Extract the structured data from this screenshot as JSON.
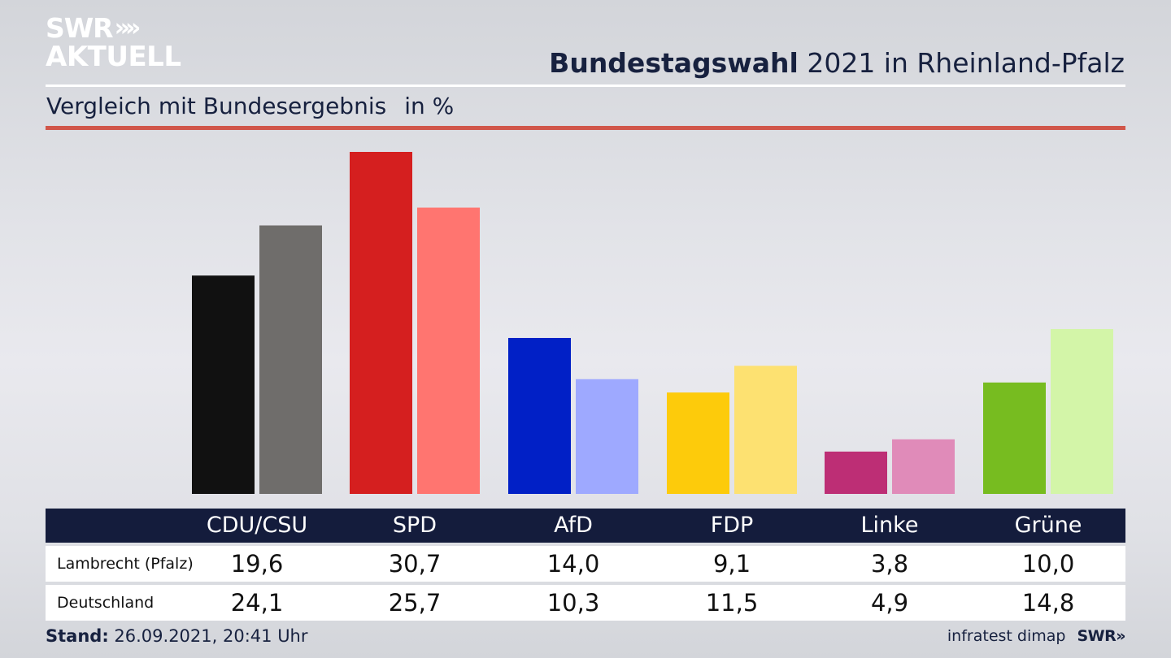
{
  "brand": {
    "logo_top": "SWR",
    "logo_chevrons": "»",
    "logo_bottom": "AKTUELL"
  },
  "header": {
    "title_bold": "Bundestagswahl",
    "title_rest": "2021 in Rheinland-Pfalz",
    "subtitle": "Vergleich mit Bundesergebnis",
    "unit": "in %"
  },
  "chart_data": {
    "type": "bar",
    "categories": [
      "CDU/CSU",
      "SPD",
      "AfD",
      "FDP",
      "Linke",
      "Grüne"
    ],
    "series": [
      {
        "name": "Lambrecht (Pfalz)",
        "values": [
          19.6,
          30.7,
          14.0,
          9.1,
          3.8,
          10.0
        ]
      },
      {
        "name": "Deutschland",
        "values": [
          24.1,
          25.7,
          10.3,
          11.5,
          4.9,
          14.8
        ]
      }
    ],
    "series_labels": [
      [
        "19,6",
        "30,7",
        "14,0",
        "9,1",
        "3,8",
        "10,0"
      ],
      [
        "24,1",
        "25,7",
        "10,3",
        "11,5",
        "4,9",
        "14,8"
      ]
    ],
    "colors": {
      "primary": [
        "#111111",
        "#d51f1f",
        "#0120c6",
        "#fdcb0b",
        "#bd2e75",
        "#77bc20"
      ],
      "secondary": [
        "#6f6d6b",
        "#ff7570",
        "#9ea9ff",
        "#fde171",
        "#e08bb9",
        "#d3f5a8"
      ]
    },
    "ylim": [
      0,
      31.5
    ],
    "grid": false,
    "legend": "table-below"
  },
  "footer": {
    "stand_label": "Stand:",
    "stand_value": "26.09.2021, 20:41 Uhr",
    "source": "infratest dimap",
    "brand": "SWR»"
  }
}
